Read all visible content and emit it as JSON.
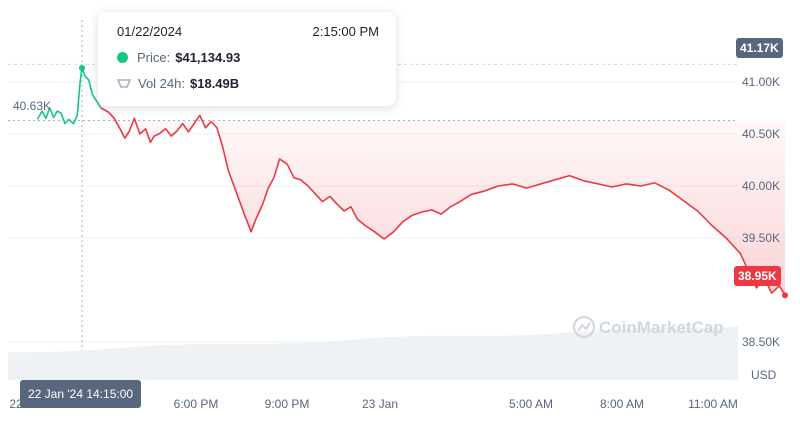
{
  "chart_data": {
    "type": "area",
    "currency_label": "USD",
    "y_ticks": [
      "41.00K",
      "40.50K",
      "40.00K",
      "39.50K",
      "38.50K"
    ],
    "x_ticks": [
      "22",
      "6:00 PM",
      "9:00 PM",
      "23 Jan",
      "5:00 AM",
      "8:00 AM",
      "11:00 AM"
    ],
    "open_label": "40.63K",
    "high_label": "41.17K",
    "last_label": "38.95K",
    "crosshair_label": "22 Jan '24 14:15:00",
    "ylim": [
      38250,
      41500
    ],
    "series": [
      {
        "values": [
          [
            -0.45,
            40640
          ],
          [
            -0.4,
            40720
          ],
          [
            -0.36,
            40650
          ],
          [
            -0.32,
            40750
          ],
          [
            -0.28,
            40660
          ],
          [
            -0.24,
            40720
          ],
          [
            -0.2,
            40700
          ],
          [
            -0.16,
            40600
          ],
          [
            -0.12,
            40640
          ],
          [
            -0.07,
            40600
          ],
          [
            -0.03,
            40680
          ],
          [
            0.0,
            41000
          ],
          [
            0.02,
            41134.93
          ],
          [
            0.05,
            41060
          ],
          [
            0.09,
            41020
          ],
          [
            0.13,
            40880
          ],
          [
            0.17,
            40820
          ],
          [
            0.22,
            40750
          ],
          [
            0.3,
            40710
          ],
          [
            0.36,
            40650
          ],
          [
            0.42,
            40550
          ],
          [
            0.47,
            40460
          ],
          [
            0.52,
            40530
          ],
          [
            0.57,
            40650
          ],
          [
            0.63,
            40500
          ],
          [
            0.69,
            40550
          ],
          [
            0.74,
            40420
          ],
          [
            0.78,
            40480
          ],
          [
            0.83,
            40500
          ],
          [
            0.9,
            40550
          ],
          [
            0.96,
            40480
          ],
          [
            1.02,
            40530
          ],
          [
            1.08,
            40600
          ],
          [
            1.14,
            40520
          ],
          [
            1.2,
            40600
          ],
          [
            1.26,
            40680
          ],
          [
            1.32,
            40560
          ],
          [
            1.38,
            40620
          ],
          [
            1.44,
            40560
          ],
          [
            1.5,
            40380
          ],
          [
            1.56,
            40150
          ],
          [
            1.64,
            39950
          ],
          [
            1.72,
            39750
          ],
          [
            1.8,
            39560
          ],
          [
            1.85,
            39680
          ],
          [
            1.92,
            39820
          ],
          [
            1.98,
            39980
          ],
          [
            2.04,
            40080
          ],
          [
            2.1,
            40260
          ],
          [
            2.18,
            40210
          ],
          [
            2.25,
            40080
          ],
          [
            2.32,
            40060
          ],
          [
            2.4,
            40000
          ],
          [
            2.48,
            39920
          ],
          [
            2.55,
            39850
          ],
          [
            2.63,
            39900
          ],
          [
            2.7,
            39830
          ],
          [
            2.78,
            39760
          ],
          [
            2.85,
            39800
          ],
          [
            2.92,
            39680
          ],
          [
            3.0,
            39620
          ],
          [
            3.1,
            39560
          ],
          [
            3.2,
            39490
          ],
          [
            3.3,
            39560
          ],
          [
            3.4,
            39660
          ],
          [
            3.5,
            39720
          ],
          [
            3.6,
            39750
          ],
          [
            3.7,
            39770
          ],
          [
            3.8,
            39730
          ],
          [
            3.9,
            39800
          ],
          [
            4.0,
            39850
          ],
          [
            4.12,
            39920
          ],
          [
            4.25,
            39950
          ],
          [
            4.4,
            40000
          ],
          [
            4.55,
            40020
          ],
          [
            4.7,
            39980
          ],
          [
            4.85,
            40020
          ],
          [
            5.0,
            40060
          ],
          [
            5.15,
            40100
          ],
          [
            5.3,
            40050
          ],
          [
            5.45,
            40020
          ],
          [
            5.6,
            39990
          ],
          [
            5.75,
            40020
          ],
          [
            5.9,
            40000
          ],
          [
            6.05,
            40030
          ],
          [
            6.2,
            39960
          ],
          [
            6.35,
            39860
          ],
          [
            6.5,
            39760
          ],
          [
            6.65,
            39620
          ],
          [
            6.8,
            39500
          ],
          [
            6.95,
            39350
          ],
          [
            7.05,
            39150
          ],
          [
            7.12,
            39020
          ],
          [
            7.2,
            39120
          ],
          [
            7.28,
            38970
          ],
          [
            7.36,
            39040
          ],
          [
            7.42,
            38950
          ]
        ]
      }
    ]
  },
  "tooltip": {
    "date": "01/22/2024",
    "time": "2:15:00 PM",
    "price_label": "Price:",
    "price_value": "$41,134.93",
    "volume_label": "Vol 24h:",
    "volume_value": "$18.49B"
  },
  "watermark": "CoinMarketCap",
  "colors": {
    "up": "#16c784",
    "down": "#ea3943",
    "grid": "#eff2f5",
    "axis_text": "#58667e",
    "volume_fill": "#eff2f5"
  }
}
